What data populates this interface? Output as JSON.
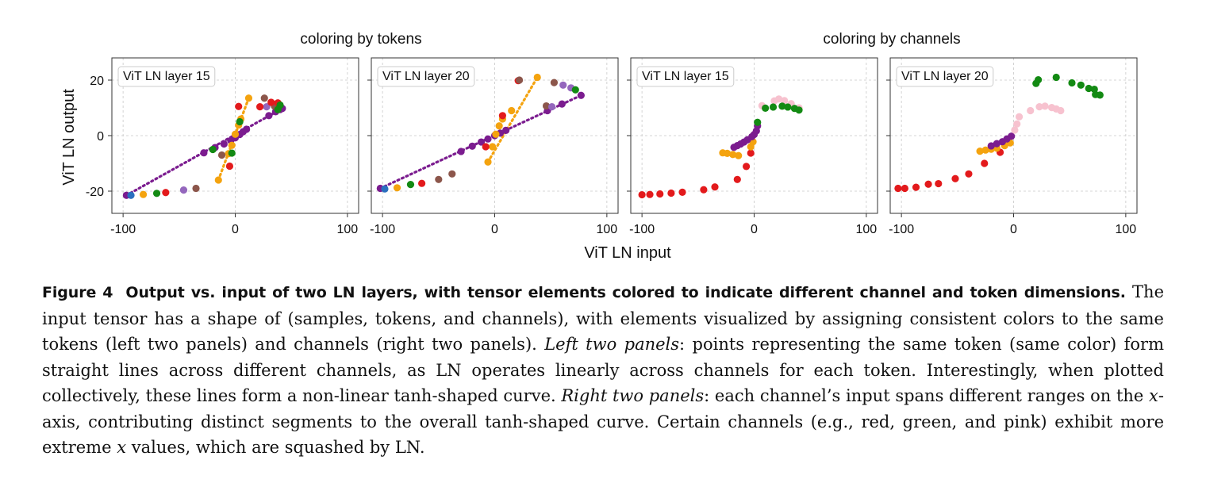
{
  "figure": {
    "group_titles": [
      "coloring by tokens",
      "coloring by channels"
    ],
    "xlabel": "ViT LN input",
    "ylabel": "ViT LN output",
    "panel_labels": [
      "ViT LN layer 15",
      "ViT LN layer 20",
      "ViT LN layer 15",
      "ViT LN layer 20"
    ],
    "colors": {
      "red": "#e31a1c",
      "green": "#138a13",
      "purple": "#7b1c8f",
      "orange": "#f4a30f",
      "pink": "#f7c2cf",
      "brown": "#8c564b",
      "blue": "#2a6fbf",
      "lavender": "#9467bd"
    }
  },
  "caption": {
    "label": "Figure 4",
    "title": "Output vs. input of two LN layers, with tensor elements colored to indicate different channel and token dimensions.",
    "s1": "The input tensor has a shape of (samples, tokens, and channels), with elements visualized by assigning consistent colors to the same tokens (left two panels) and channels (right two panels).",
    "left_label": "Left two panels",
    "s2": ": points representing the same token (same color) form straight lines across different channels, as LN operates linearly across channels for each token. Interestingly, when plotted collectively, these lines form a non-linear tanh-shaped curve.",
    "right_label": "Right two panels",
    "s3a": ": each channel’s input spans different ranges on the ",
    "x_var": "x",
    "s3b": "-axis, contributing distinct segments to the overall tanh-shaped curve. Certain channels (e.g., red, green, and pink) exhibit more extreme ",
    "x_var2": "x",
    "s3c": " values, which are squashed by LN."
  },
  "chart_data": [
    {
      "type": "scatter",
      "title": "ViT LN layer 15",
      "group": "coloring by tokens",
      "xlabel": "ViT LN input",
      "ylabel": "ViT LN output",
      "xlim": [
        -110,
        110
      ],
      "ylim": [
        -28,
        28
      ],
      "xticks": [
        -100,
        0,
        100
      ],
      "yticks": [
        -20,
        0,
        20
      ],
      "grid": true,
      "series": [
        {
          "color": "purple",
          "line": [
            [
              -97,
              -21.5
            ],
            [
              42,
              9.8
            ]
          ],
          "points": [
            [
              -97,
              -21.5
            ],
            [
              -28,
              -6.2
            ],
            [
              -18,
              -4.3
            ],
            [
              -10,
              -3
            ],
            [
              -4,
              -1.8
            ],
            [
              0,
              -0.8
            ],
            [
              4,
              0.4
            ],
            [
              7,
              1.4
            ],
            [
              10,
              2.3
            ],
            [
              30,
              7.2
            ],
            [
              36,
              8.6
            ],
            [
              40,
              9.4
            ],
            [
              42,
              9.8
            ]
          ]
        },
        {
          "color": "orange",
          "line": [
            [
              -15,
              -16
            ],
            [
              12,
              13.5
            ]
          ],
          "points": [
            [
              -15,
              -16
            ],
            [
              -6,
              -6.5
            ],
            [
              -3,
              -3.5
            ],
            [
              0,
              0.5
            ],
            [
              3,
              3.8
            ],
            [
              5,
              6
            ],
            [
              12,
              13.5
            ]
          ]
        },
        {
          "color": "blue",
          "points": [
            [
              -93,
              -21.5
            ]
          ]
        },
        {
          "color": "orange",
          "points": [
            [
              -82,
              -21.2
            ]
          ]
        },
        {
          "color": "green",
          "points": [
            [
              -70,
              -20.8
            ]
          ]
        },
        {
          "color": "red",
          "points": [
            [
              -62,
              -20.5
            ]
          ]
        },
        {
          "color": "lavender",
          "points": [
            [
              -46,
              -19.6
            ],
            [
              28,
              10.4
            ],
            [
              36,
              11.3
            ]
          ]
        },
        {
          "color": "brown",
          "points": [
            [
              -35,
              -19
            ],
            [
              -12,
              -7
            ],
            [
              26,
              13.5
            ],
            [
              35,
              10.6
            ]
          ]
        },
        {
          "color": "red",
          "points": [
            [
              -5,
              -11
            ],
            [
              3,
              10.5
            ],
            [
              22,
              10.4
            ],
            [
              32,
              12
            ],
            [
              38,
              11.8
            ]
          ]
        },
        {
          "color": "green",
          "points": [
            [
              -20,
              -5
            ],
            [
              -3,
              -6.3
            ],
            [
              4,
              5
            ],
            [
              40,
              11
            ],
            [
              38,
              9.4
            ]
          ]
        }
      ]
    },
    {
      "type": "scatter",
      "title": "ViT LN layer 20",
      "group": "coloring by tokens",
      "xlabel": "ViT LN input",
      "ylabel": "ViT LN output",
      "xlim": [
        -110,
        110
      ],
      "ylim": [
        -28,
        28
      ],
      "xticks": [
        -100,
        0,
        100
      ],
      "yticks": [
        -20,
        0,
        20
      ],
      "grid": true,
      "series": [
        {
          "color": "purple",
          "line": [
            [
              -102,
              -19
            ],
            [
              77,
              14.5
            ]
          ],
          "points": [
            [
              -102,
              -19
            ],
            [
              -30,
              -5.7
            ],
            [
              -20,
              -3.8
            ],
            [
              -12,
              -2.3
            ],
            [
              -6,
              -1.2
            ],
            [
              0,
              0
            ],
            [
              5,
              0.9
            ],
            [
              10,
              1.9
            ],
            [
              47,
              9
            ],
            [
              60,
              11.4
            ],
            [
              77,
              14.5
            ]
          ]
        },
        {
          "color": "orange",
          "line": [
            [
              -6,
              -9.5
            ],
            [
              38,
              21
            ]
          ],
          "points": [
            [
              -6,
              -9.5
            ],
            [
              -2,
              -4
            ],
            [
              1,
              0.5
            ],
            [
              4,
              3.5
            ],
            [
              7,
              6
            ],
            [
              15,
              9
            ],
            [
              38,
              21
            ]
          ]
        },
        {
          "color": "blue",
          "points": [
            [
              -98,
              -19.2
            ]
          ]
        },
        {
          "color": "orange",
          "points": [
            [
              -87,
              -18.8
            ]
          ]
        },
        {
          "color": "green",
          "points": [
            [
              -75,
              -17.6
            ]
          ]
        },
        {
          "color": "red",
          "points": [
            [
              -65,
              -17.2
            ],
            [
              21,
              19.8
            ],
            [
              7,
              7.2
            ],
            [
              -8,
              -4
            ]
          ]
        },
        {
          "color": "brown",
          "points": [
            [
              -50,
              -15.8
            ],
            [
              -38,
              -13.8
            ],
            [
              22,
              20
            ],
            [
              53,
              19.1
            ],
            [
              46,
              10.7
            ]
          ]
        },
        {
          "color": "lavender",
          "points": [
            [
              61,
              18.2
            ],
            [
              68,
              17.2
            ],
            [
              51,
              10.4
            ]
          ]
        },
        {
          "color": "green",
          "points": [
            [
              72,
              16.5
            ]
          ]
        }
      ]
    },
    {
      "type": "scatter",
      "title": "ViT LN layer 15",
      "group": "coloring by channels",
      "xlabel": "ViT LN input",
      "ylabel": "ViT LN output",
      "xlim": [
        -110,
        110
      ],
      "ylim": [
        -28,
        28
      ],
      "xticks": [
        -100,
        0,
        100
      ],
      "yticks": [
        -20,
        0,
        20
      ],
      "grid": true,
      "series": [
        {
          "color": "red",
          "points": [
            [
              -100,
              -21.3
            ],
            [
              -93,
              -21.2
            ],
            [
              -84,
              -21
            ],
            [
              -74,
              -20.7
            ],
            [
              -64,
              -20.4
            ],
            [
              -45,
              -19.5
            ],
            [
              -35,
              -18.5
            ],
            [
              -15,
              -15.8
            ],
            [
              -7,
              -11.1
            ],
            [
              -3,
              -6.3
            ]
          ]
        },
        {
          "color": "orange",
          "points": [
            [
              -28,
              -6.2
            ],
            [
              -24,
              -6.4
            ],
            [
              -19,
              -6.8
            ],
            [
              -14,
              -7.2
            ],
            [
              -3,
              -4
            ],
            [
              -1,
              -2.2
            ]
          ]
        },
        {
          "color": "purple",
          "points": [
            [
              -18,
              -4.2
            ],
            [
              -15,
              -3.6
            ],
            [
              -12,
              -3
            ],
            [
              -9,
              -2.3
            ],
            [
              -6,
              -1.5
            ],
            [
              -2,
              -0.4
            ],
            [
              0,
              0.4
            ],
            [
              2,
              1.7
            ],
            [
              3,
              3.5
            ]
          ]
        },
        {
          "color": "pink",
          "points": [
            [
              7,
              10.8
            ],
            [
              18,
              12.5
            ],
            [
              22,
              13.2
            ],
            [
              27,
              12.6
            ],
            [
              33,
              11.5
            ],
            [
              40,
              10
            ]
          ]
        },
        {
          "color": "green",
          "points": [
            [
              10,
              9.9
            ],
            [
              17,
              10.3
            ],
            [
              25,
              10.6
            ],
            [
              30,
              10.3
            ],
            [
              36,
              9.8
            ],
            [
              40,
              9.2
            ],
            [
              3,
              4.8
            ]
          ]
        }
      ]
    },
    {
      "type": "scatter",
      "title": "ViT LN layer 20",
      "group": "coloring by channels",
      "xlabel": "ViT LN input",
      "ylabel": "ViT LN output",
      "xlim": [
        -110,
        110
      ],
      "ylim": [
        -28,
        28
      ],
      "xticks": [
        -100,
        0,
        100
      ],
      "yticks": [
        -20,
        0,
        20
      ],
      "grid": true,
      "series": [
        {
          "color": "red",
          "points": [
            [
              -103,
              -19
            ],
            [
              -97,
              -19
            ],
            [
              -87,
              -18.6
            ],
            [
              -76,
              -17.5
            ],
            [
              -67,
              -17.3
            ],
            [
              -52,
              -15.5
            ],
            [
              -40,
              -13.8
            ],
            [
              -26,
              -10
            ],
            [
              -12,
              -6
            ]
          ]
        },
        {
          "color": "orange",
          "points": [
            [
              -30,
              -5.6
            ],
            [
              -25,
              -5.2
            ],
            [
              -20,
              -4.9
            ],
            [
              -15,
              -4.5
            ],
            [
              -8,
              -3.6
            ],
            [
              -3,
              -2.6
            ]
          ]
        },
        {
          "color": "purple",
          "points": [
            [
              -20,
              -3.7
            ],
            [
              -15,
              -2.9
            ],
            [
              -10,
              -2.2
            ],
            [
              -6,
              -1.2
            ],
            [
              -2,
              -0.2
            ]
          ]
        },
        {
          "color": "pink",
          "points": [
            [
              1,
              2
            ],
            [
              3,
              4.2
            ],
            [
              5,
              6.8
            ],
            [
              15,
              9
            ],
            [
              23,
              10.4
            ],
            [
              28,
              10.6
            ],
            [
              34,
              10.1
            ],
            [
              38,
              9.6
            ],
            [
              42,
              9
            ]
          ]
        },
        {
          "color": "green",
          "points": [
            [
              20,
              18.8
            ],
            [
              22,
              20.1
            ],
            [
              38,
              21
            ],
            [
              52,
              19
            ],
            [
              60,
              18.2
            ],
            [
              67,
              17
            ],
            [
              72,
              16.7
            ],
            [
              73,
              14.8
            ],
            [
              77,
              14.6
            ]
          ]
        }
      ]
    }
  ]
}
